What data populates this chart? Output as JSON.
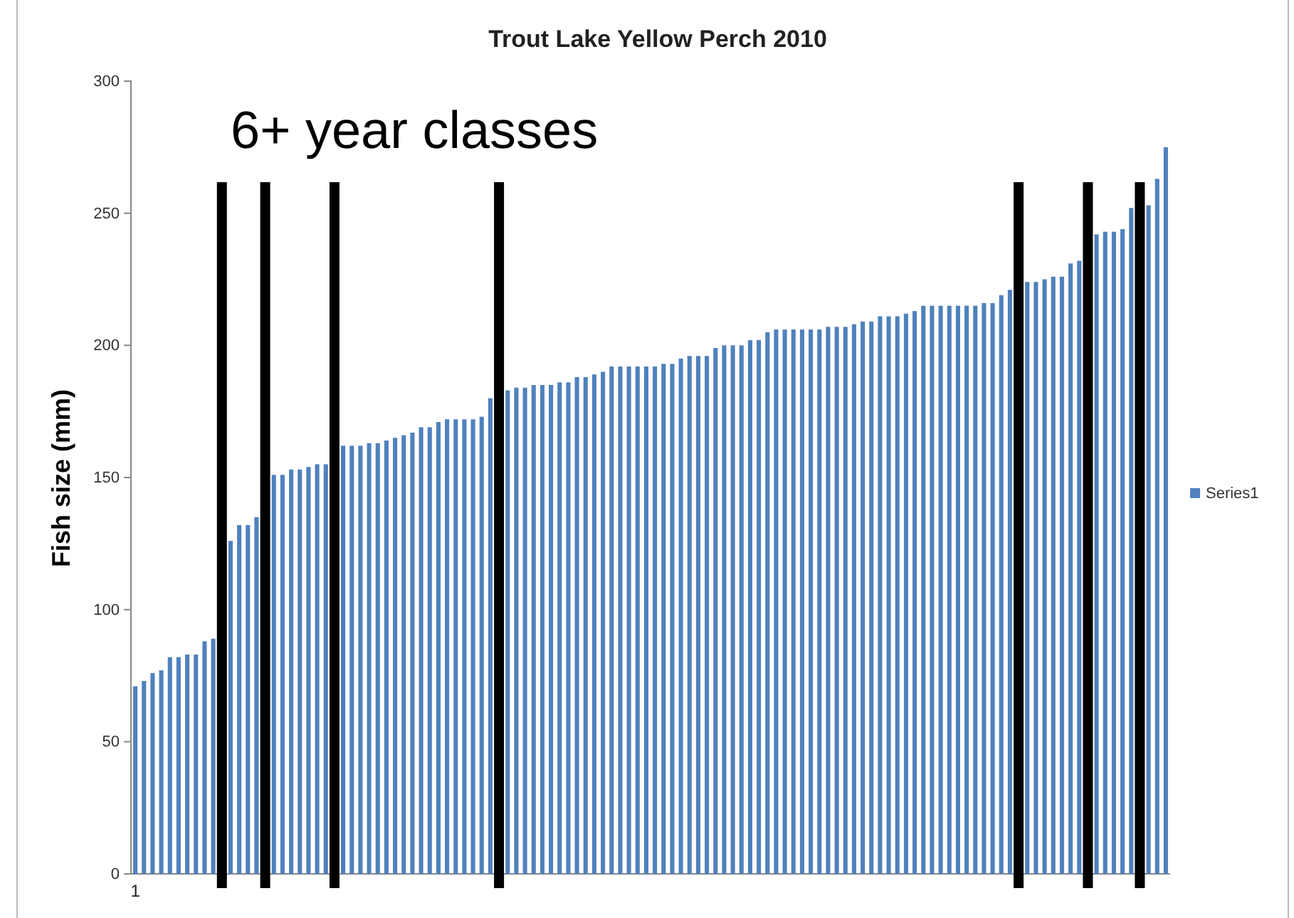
{
  "chart_data": {
    "type": "bar",
    "title": "Trout Lake Yellow Perch 2010",
    "ylabel": "Fish size (mm)",
    "annotations": [
      "6+ year classes"
    ],
    "categories": [
      "1",
      null,
      null,
      null,
      null,
      null,
      null,
      null,
      null,
      null,
      null,
      null,
      null,
      null,
      null,
      null,
      null,
      null,
      null,
      null,
      null,
      null,
      null,
      null,
      null,
      null,
      null,
      null,
      null,
      null,
      null,
      null,
      null,
      null,
      null,
      null,
      null,
      null,
      null,
      null,
      null,
      null,
      null,
      null,
      null,
      null,
      null,
      null,
      null,
      null,
      null,
      null,
      null,
      null,
      null,
      null,
      null,
      null,
      null,
      null,
      null,
      null,
      null,
      null,
      null,
      null,
      null,
      null,
      null,
      null,
      null,
      null,
      null,
      null,
      null,
      null,
      null,
      null,
      null,
      null,
      null,
      null,
      null,
      null,
      null,
      null,
      null,
      null,
      null,
      null,
      null,
      null,
      null,
      null,
      null,
      null,
      null,
      null,
      null,
      null,
      null,
      null,
      null,
      null,
      null,
      null,
      null,
      null,
      null,
      null,
      null,
      null,
      null,
      null,
      null,
      null,
      null,
      null,
      null,
      null
    ],
    "series": [
      {
        "name": "Series1",
        "color": "#4f81bd",
        "values": [
          71,
          73,
          76,
          77,
          82,
          82,
          83,
          83,
          88,
          89,
          null,
          126,
          132,
          132,
          135,
          null,
          151,
          151,
          153,
          153,
          154,
          155,
          155,
          null,
          162,
          162,
          162,
          163,
          163,
          164,
          165,
          166,
          167,
          169,
          169,
          171,
          172,
          172,
          172,
          172,
          173,
          180,
          null,
          183,
          184,
          184,
          185,
          185,
          185,
          186,
          186,
          188,
          188,
          189,
          190,
          192,
          192,
          192,
          192,
          192,
          192,
          193,
          193,
          195,
          196,
          196,
          196,
          199,
          200,
          200,
          200,
          202,
          202,
          205,
          206,
          206,
          206,
          206,
          206,
          206,
          207,
          207,
          207,
          208,
          209,
          209,
          211,
          211,
          211,
          212,
          213,
          215,
          215,
          215,
          215,
          215,
          215,
          215,
          216,
          216,
          219,
          221,
          null,
          224,
          224,
          225,
          226,
          226,
          231,
          232,
          null,
          242,
          243,
          243,
          244,
          252,
          null,
          253,
          263,
          275
        ]
      }
    ],
    "ylim": [
      0,
      300
    ],
    "yticks": [
      0,
      50,
      100,
      150,
      200,
      250,
      300
    ],
    "legend": "right"
  }
}
